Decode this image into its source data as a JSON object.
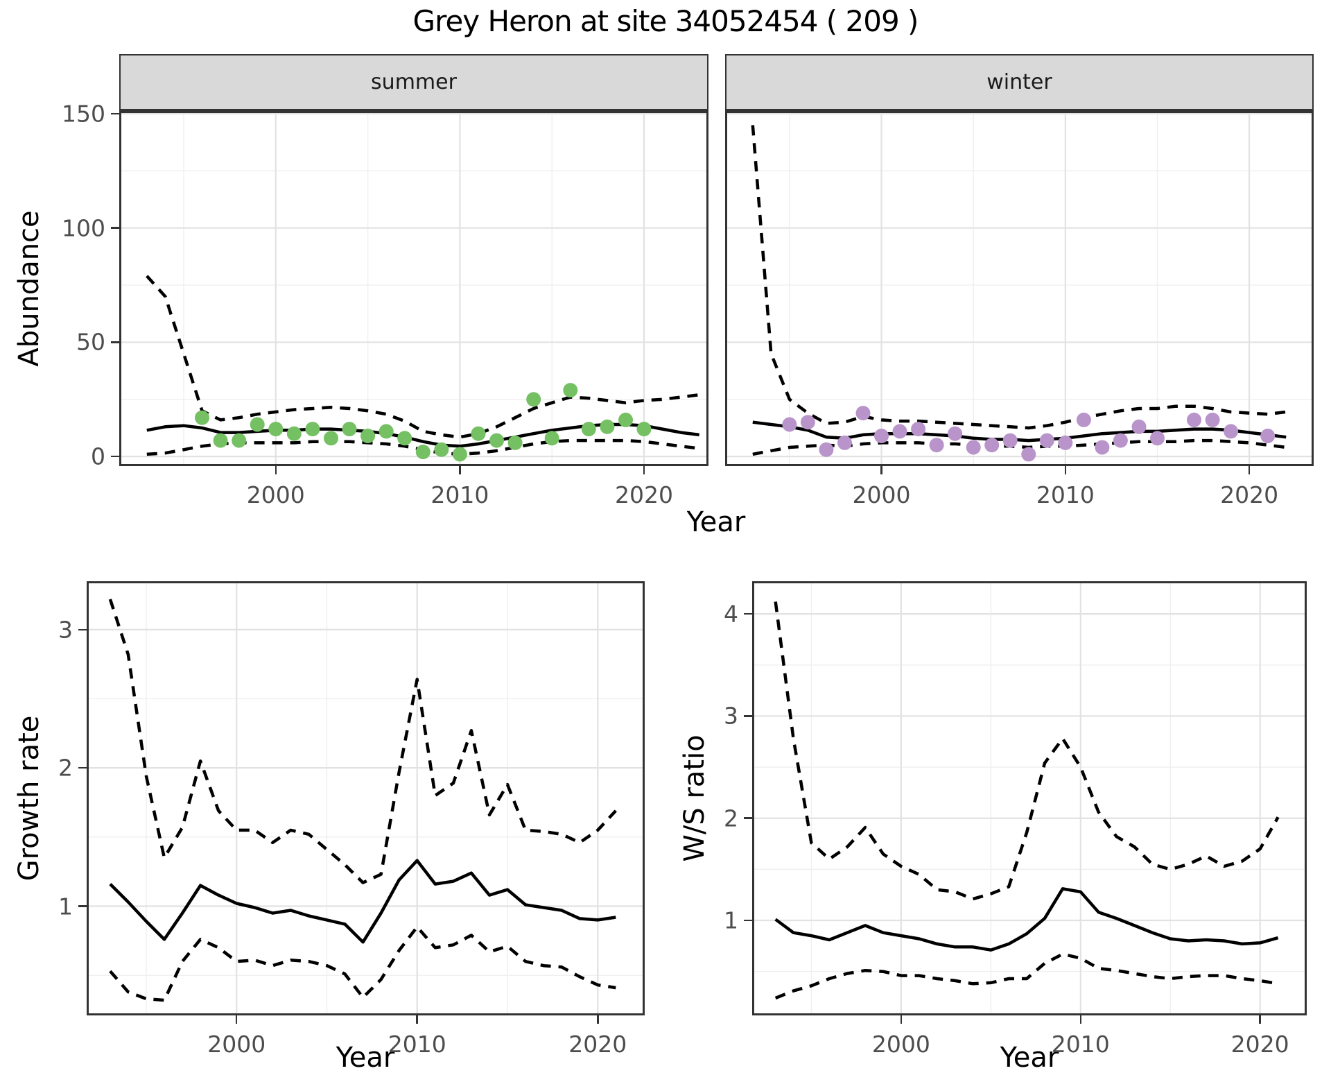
{
  "title": "Grey Heron at site 34052454 ( 209 )",
  "axis_titles": {
    "top_y": "Abundance",
    "top_x": "Year",
    "bottom_left_y": "Growth rate",
    "bottom_left_x": "Year",
    "bottom_right_y": "W/S ratio",
    "bottom_right_x": "Year"
  },
  "colors": {
    "summer_point": "#74c063",
    "winter_point": "#b894ca",
    "fit_line": "#000000",
    "ci_line": "#000000",
    "grid_major": "#e2e2e2",
    "grid_minor": "#efefef",
    "panel_border": "#333333",
    "strip_bg": "#d9d9d9",
    "tick_text": "#4d4d4d",
    "title_text": "#000000"
  },
  "chart_data": [
    {
      "id": "summer",
      "type": "line",
      "facet_label": "summer",
      "xlim": [
        1991.5,
        2023.5
      ],
      "ylim": [
        -4.2,
        151.2
      ],
      "xticks": [
        2000,
        2010,
        2020
      ],
      "xminor": [
        1995,
        2005,
        2015
      ],
      "yticks": [
        0,
        50,
        100,
        150
      ],
      "yminor": [
        25,
        75,
        125
      ],
      "ytick_labels": true,
      "fit": {
        "years": [
          1993,
          1994,
          1995,
          1996,
          1997,
          1998,
          1999,
          2000,
          2001,
          2002,
          2003,
          2004,
          2005,
          2006,
          2007,
          2008,
          2009,
          2010,
          2011,
          2012,
          2013,
          2014,
          2015,
          2016,
          2017,
          2018,
          2019,
          2020,
          2021,
          2022,
          2023
        ],
        "values": [
          11.5,
          13,
          13.5,
          12.5,
          10.5,
          10.5,
          11,
          11.5,
          11.5,
          12,
          12,
          11.5,
          11,
          10,
          8.5,
          6.5,
          5,
          4.5,
          5.5,
          7,
          8.5,
          10,
          11.5,
          12.5,
          13.5,
          14,
          14,
          13.5,
          12,
          10.5,
          9.5
        ]
      },
      "upper": {
        "years": [
          1993,
          1994,
          1995,
          1996,
          1997,
          1998,
          1999,
          2000,
          2001,
          2002,
          2003,
          2004,
          2005,
          2006,
          2007,
          2008,
          2009,
          2010,
          2011,
          2012,
          2013,
          2014,
          2015,
          2016,
          2017,
          2018,
          2019,
          2020,
          2021,
          2022,
          2023
        ],
        "values": [
          79,
          70,
          45,
          20,
          16,
          17,
          18.5,
          19.5,
          20.5,
          21,
          21.5,
          21,
          20,
          18.5,
          15.5,
          11,
          9.5,
          8.5,
          10,
          13,
          17,
          21,
          23.5,
          26,
          25.5,
          24.5,
          23.5,
          24.5,
          25,
          26,
          27
        ]
      },
      "lower": {
        "years": [
          1993,
          1994,
          1995,
          1996,
          1997,
          1998,
          1999,
          2000,
          2001,
          2002,
          2003,
          2004,
          2005,
          2006,
          2007,
          2008,
          2009,
          2010,
          2011,
          2012,
          2013,
          2014,
          2015,
          2016,
          2017,
          2018,
          2019,
          2020,
          2021,
          2022,
          2023
        ],
        "values": [
          1,
          1.5,
          3,
          4.5,
          5.5,
          6,
          6,
          6,
          6,
          6.5,
          6.5,
          6.5,
          6,
          5.5,
          4.5,
          3,
          1.5,
          1,
          1.5,
          2.5,
          4,
          5.5,
          6.5,
          7,
          7,
          7,
          7,
          6.5,
          5.5,
          4.5,
          3.5
        ]
      },
      "points": {
        "color_key": "summer_point",
        "years": [
          1996,
          1997,
          1998,
          1999,
          2000,
          2001,
          2002,
          2003,
          2004,
          2005,
          2006,
          2007,
          2008,
          2009,
          2010,
          2011,
          2012,
          2013,
          2014,
          2015,
          2016,
          2017,
          2018,
          2019,
          2020
        ],
        "values": [
          17,
          7,
          7,
          14,
          12,
          10,
          12,
          8,
          12,
          9,
          11,
          8,
          2,
          3,
          1,
          10,
          7,
          6,
          25,
          8,
          29,
          12,
          13,
          16,
          12
        ]
      }
    },
    {
      "id": "winter",
      "type": "line",
      "facet_label": "winter",
      "xlim": [
        1991.5,
        2023.5
      ],
      "ylim": [
        -4.2,
        151.2
      ],
      "xticks": [
        2000,
        2010,
        2020
      ],
      "xminor": [
        1995,
        2005,
        2015
      ],
      "yticks": [
        0,
        50,
        100,
        150
      ],
      "yminor": [
        25,
        75,
        125
      ],
      "ytick_labels": false,
      "fit": {
        "years": [
          1993,
          1994,
          1995,
          1996,
          1997,
          1998,
          1999,
          2000,
          2001,
          2002,
          2003,
          2004,
          2005,
          2006,
          2007,
          2008,
          2009,
          2010,
          2011,
          2012,
          2013,
          2014,
          2015,
          2016,
          2017,
          2018,
          2019,
          2020,
          2021,
          2022
        ],
        "values": [
          15,
          14,
          13,
          11.5,
          8.5,
          8,
          9.5,
          10,
          10,
          10,
          9.5,
          9,
          8,
          7.5,
          7.5,
          7,
          7.5,
          8,
          9,
          10,
          10.5,
          11,
          11,
          11.5,
          12,
          12,
          11.5,
          10.5,
          9.5,
          8.5
        ]
      },
      "upper": {
        "years": [
          1993,
          1994,
          1995,
          1996,
          1997,
          1998,
          1999,
          2000,
          2001,
          2002,
          2003,
          2004,
          2005,
          2006,
          2007,
          2008,
          2009,
          2010,
          2011,
          2012,
          2013,
          2014,
          2015,
          2016,
          2017,
          2018,
          2019,
          2020,
          2021,
          2022
        ],
        "values": [
          145,
          45,
          25,
          19,
          14.5,
          15,
          17.5,
          16,
          15.5,
          15.5,
          15,
          14.5,
          14,
          13.5,
          13,
          12.5,
          13.5,
          15,
          17,
          18.5,
          20,
          21,
          21,
          22,
          22,
          21,
          19.5,
          19,
          18.5,
          19.5
        ]
      },
      "lower": {
        "years": [
          1993,
          1994,
          1995,
          1996,
          1997,
          1998,
          1999,
          2000,
          2001,
          2002,
          2003,
          2004,
          2005,
          2006,
          2007,
          2008,
          2009,
          2010,
          2011,
          2012,
          2013,
          2014,
          2015,
          2016,
          2017,
          2018,
          2019,
          2020,
          2021,
          2022
        ],
        "values": [
          1,
          2.5,
          4,
          4.5,
          5,
          4.5,
          5.5,
          6,
          6,
          6,
          5.5,
          5.5,
          5,
          4.5,
          4.5,
          4,
          4.5,
          4.5,
          5,
          5.5,
          6,
          6.5,
          6.5,
          6.5,
          7,
          7,
          6.5,
          6,
          5,
          4
        ]
      },
      "points": {
        "color_key": "winter_point",
        "years": [
          1995,
          1996,
          1997,
          1998,
          1999,
          2000,
          2001,
          2002,
          2003,
          2004,
          2005,
          2006,
          2007,
          2008,
          2009,
          2010,
          2011,
          2012,
          2013,
          2014,
          2015,
          2017,
          2018,
          2019,
          2021
        ],
        "values": [
          14,
          15,
          3,
          6,
          19,
          9,
          11,
          12,
          5,
          10,
          4,
          5,
          7,
          1,
          7,
          6,
          16,
          4,
          7,
          13,
          8,
          16,
          16,
          11,
          9
        ]
      }
    },
    {
      "id": "growth",
      "type": "line",
      "facet_label": null,
      "xlim": [
        1991.7,
        2022.6
      ],
      "ylim": [
        0.21,
        3.35
      ],
      "xticks": [
        2000,
        2010,
        2020
      ],
      "xminor": [
        1995,
        2005,
        2015
      ],
      "yticks": [
        1,
        2,
        3
      ],
      "yminor": [
        0.5,
        1.5,
        2.5
      ],
      "ytick_labels": true,
      "fit": {
        "years": [
          1993,
          1994,
          1995,
          1996,
          1997,
          1998,
          1999,
          2000,
          2001,
          2002,
          2003,
          2004,
          2005,
          2006,
          2007,
          2008,
          2009,
          2010,
          2011,
          2012,
          2013,
          2014,
          2015,
          2016,
          2017,
          2018,
          2019,
          2020,
          2021
        ],
        "values": [
          1.16,
          1.03,
          0.89,
          0.76,
          0.95,
          1.15,
          1.08,
          1.02,
          0.99,
          0.95,
          0.97,
          0.93,
          0.9,
          0.87,
          0.74,
          0.95,
          1.19,
          1.33,
          1.16,
          1.18,
          1.24,
          1.08,
          1.12,
          1.01,
          0.99,
          0.97,
          0.91,
          0.9,
          0.92
        ]
      },
      "upper": {
        "years": [
          1993,
          1994,
          1995,
          1996,
          1997,
          1998,
          1999,
          2000,
          2001,
          2002,
          2003,
          2004,
          2005,
          2006,
          2007,
          2008,
          2009,
          2010,
          2011,
          2012,
          2013,
          2014,
          2015,
          2016,
          2017,
          2018,
          2019,
          2020,
          2021
        ],
        "values": [
          3.22,
          2.82,
          1.94,
          1.35,
          1.57,
          2.05,
          1.69,
          1.55,
          1.55,
          1.46,
          1.55,
          1.52,
          1.41,
          1.3,
          1.17,
          1.23,
          1.97,
          2.64,
          1.8,
          1.89,
          2.27,
          1.66,
          1.88,
          1.55,
          1.54,
          1.52,
          1.46,
          1.55,
          1.69
        ]
      },
      "lower": {
        "years": [
          1993,
          1994,
          1995,
          1996,
          1997,
          1998,
          1999,
          2000,
          2001,
          2002,
          2003,
          2004,
          2005,
          2006,
          2007,
          2008,
          2009,
          2010,
          2011,
          2012,
          2013,
          2014,
          2015,
          2016,
          2017,
          2018,
          2019,
          2020,
          2021
        ],
        "values": [
          0.53,
          0.38,
          0.33,
          0.32,
          0.6,
          0.76,
          0.7,
          0.6,
          0.61,
          0.57,
          0.61,
          0.6,
          0.57,
          0.51,
          0.34,
          0.47,
          0.68,
          0.85,
          0.7,
          0.72,
          0.79,
          0.67,
          0.71,
          0.6,
          0.57,
          0.56,
          0.49,
          0.43,
          0.41
        ]
      },
      "points": null
    },
    {
      "id": "ws",
      "type": "line",
      "facet_label": null,
      "xlim": [
        1991.7,
        2022.6
      ],
      "ylim": [
        0.07,
        4.32
      ],
      "xticks": [
        2000,
        2010,
        2020
      ],
      "xminor": [
        1995,
        2005,
        2015
      ],
      "yticks": [
        1,
        2,
        3,
        4
      ],
      "yminor": [
        0.5,
        1.5,
        2.5,
        3.5
      ],
      "ytick_labels": true,
      "fit": {
        "years": [
          1993,
          1994,
          1995,
          1996,
          1997,
          1998,
          1999,
          2000,
          2001,
          2002,
          2003,
          2004,
          2005,
          2006,
          2007,
          2008,
          2009,
          2010,
          2011,
          2012,
          2013,
          2014,
          2015,
          2016,
          2017,
          2018,
          2019,
          2020,
          2021
        ],
        "values": [
          1.01,
          0.88,
          0.85,
          0.81,
          0.88,
          0.95,
          0.88,
          0.85,
          0.82,
          0.77,
          0.74,
          0.74,
          0.71,
          0.77,
          0.87,
          1.02,
          1.31,
          1.28,
          1.08,
          1.02,
          0.95,
          0.88,
          0.82,
          0.8,
          0.81,
          0.8,
          0.77,
          0.78,
          0.83
        ]
      },
      "upper": {
        "years": [
          1993,
          1994,
          1995,
          1996,
          1997,
          1998,
          1999,
          2000,
          2001,
          2002,
          2003,
          2004,
          2005,
          2006,
          2007,
          2008,
          2009,
          2010,
          2011,
          2012,
          2013,
          2014,
          2015,
          2016,
          2017,
          2018,
          2019,
          2020,
          2021
        ],
        "values": [
          4.12,
          2.78,
          1.76,
          1.6,
          1.72,
          1.91,
          1.65,
          1.53,
          1.45,
          1.3,
          1.28,
          1.21,
          1.26,
          1.33,
          1.86,
          2.54,
          2.78,
          2.5,
          2.06,
          1.82,
          1.72,
          1.55,
          1.5,
          1.55,
          1.63,
          1.53,
          1.58,
          1.7,
          2.01
        ]
      },
      "lower": {
        "years": [
          1993,
          1994,
          1995,
          1996,
          1997,
          1998,
          1999,
          2000,
          2001,
          2002,
          2003,
          2004,
          2005,
          2006,
          2007,
          2008,
          2009,
          2010,
          2011,
          2012,
          2013,
          2014,
          2015,
          2016,
          2017,
          2018,
          2019,
          2020,
          2021
        ],
        "values": [
          0.24,
          0.31,
          0.36,
          0.43,
          0.48,
          0.51,
          0.5,
          0.46,
          0.46,
          0.43,
          0.41,
          0.38,
          0.39,
          0.43,
          0.43,
          0.58,
          0.67,
          0.63,
          0.53,
          0.51,
          0.48,
          0.45,
          0.43,
          0.45,
          0.46,
          0.46,
          0.43,
          0.41,
          0.38
        ]
      },
      "points": null
    }
  ]
}
